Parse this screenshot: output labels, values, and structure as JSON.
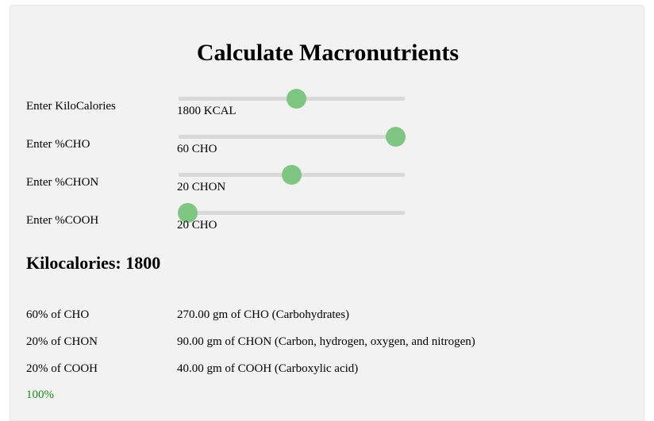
{
  "title": "Calculate Macronutrients",
  "inputs": [
    {
      "label": "Enter KiloCalories",
      "value_text": "1800 KCAL",
      "level": 0.52
    },
    {
      "label": "Enter %CHO",
      "value_text": "60 CHO",
      "level": 0.96
    },
    {
      "label": "Enter %CHON",
      "value_text": "20 CHON",
      "level": 0.5
    },
    {
      "label": "Enter %COOH",
      "value_text": "20 CHO",
      "level": 0.04
    }
  ],
  "kilocalories_heading": "Kilocalories: 1800",
  "results": [
    {
      "label": "60% of CHO",
      "value": "270.00 gm of CHO (Carbohydrates)"
    },
    {
      "label": "20% of CHON",
      "value": "90.00 gm of CHON (Carbon, hydrogen, oxygen, and nitrogen)"
    },
    {
      "label": "20% of COOH",
      "value": "40.00 gm of COOH (Carboxylic acid)"
    }
  ],
  "total": "100%",
  "colors": {
    "panel_bg": "#f2f2f2",
    "track": "#d9d9d9",
    "thumb": "#80c683",
    "total_text": "#1a8a1a"
  }
}
